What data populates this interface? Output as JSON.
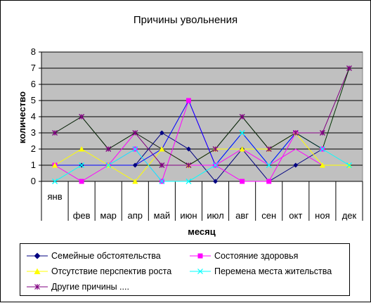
{
  "chart_data": {
    "type": "line",
    "title": "Причины увольнения",
    "xlabel": "месяц",
    "ylabel": "количество",
    "categories": [
      "янв",
      "фев",
      "мар",
      "апр",
      "май",
      "июн",
      "июл",
      "авг",
      "сен",
      "окт",
      "ноя",
      "дек"
    ],
    "ylim": [
      0,
      8
    ],
    "yticks": [
      "0",
      "1",
      "2",
      "3",
      "4",
      "5",
      "6",
      "7",
      "8"
    ],
    "grid": true,
    "plot_background": "#c0c0c0",
    "legend_position": "bottom",
    "series": [
      {
        "name": "Семейные обстоятельства",
        "color": "#000080",
        "marker": "diamond",
        "values": [
          1,
          1,
          1,
          1,
          3,
          2,
          0,
          2,
          0,
          1,
          2,
          null
        ]
      },
      {
        "name": "Состояние здоровья",
        "color": "#ff00ff",
        "marker": "square",
        "values": [
          1,
          0,
          1,
          2,
          0,
          5,
          1,
          0,
          0,
          3,
          2,
          null
        ]
      },
      {
        "name": "Отсутствие перспектив роста",
        "color": "#ffff00",
        "marker": "triangle",
        "values": [
          1,
          2,
          1,
          0,
          2,
          1,
          2,
          2,
          2,
          3,
          1,
          1
        ]
      },
      {
        "name": "Перемена места жительства",
        "color": "#00ffff",
        "marker": "x",
        "values": [
          0,
          1,
          1,
          2,
          0,
          0,
          1,
          3,
          1,
          3,
          2,
          1
        ]
      },
      {
        "name": "Другие причины ....",
        "color": "#800080",
        "marker": "star",
        "values": [
          3,
          4,
          2,
          3,
          1,
          1,
          2,
          4,
          2,
          3,
          3,
          7
        ]
      },
      {
        "name": "",
        "color": "#ff00ff",
        "marker": "none",
        "values": [
          1,
          1,
          1,
          3,
          2,
          1,
          1,
          2,
          1,
          2,
          1,
          null
        ]
      },
      {
        "name": "",
        "color": "#0000ff",
        "marker": "none",
        "values": [
          1,
          1,
          1,
          1,
          2,
          5,
          1,
          3,
          1,
          3,
          2,
          null
        ]
      },
      {
        "name": "",
        "color": "#003300",
        "marker": "none",
        "values": [
          3,
          4,
          2,
          3,
          2,
          1,
          2,
          4,
          2,
          3,
          2,
          7
        ]
      }
    ]
  }
}
